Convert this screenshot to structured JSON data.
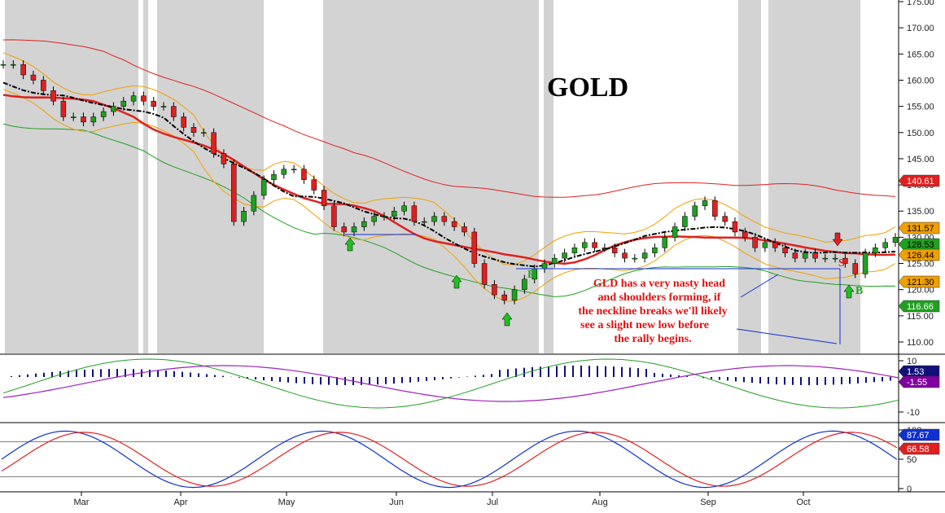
{
  "chart_data": [
    {
      "type": "candlestick",
      "title": "GOLD",
      "ylim": [
        107,
        176
      ],
      "yticks": [
        "175.00",
        "170.00",
        "165.00",
        "160.00",
        "155.00",
        "150.00",
        "145.00",
        "140.00",
        "135.00",
        "130.00",
        "125.00",
        "120.00",
        "115.00",
        "110.00"
      ],
      "ytick_values": [
        175,
        170,
        165,
        160,
        155,
        150,
        145,
        140,
        135,
        130,
        125,
        120,
        115,
        110
      ],
      "months": [
        "Mar",
        "Apr",
        "May",
        "Jun",
        "Jul",
        "Aug",
        "Sep",
        "Oct"
      ],
      "month_positions": [
        0.0,
        0.0,
        0.0,
        0.0,
        0.0,
        0.0,
        0.0,
        0.0
      ],
      "right_badges": [
        {
          "value": "140.61",
          "color": "#e02020",
          "text_color": "#ffffff"
        },
        {
          "value": "131.57",
          "color": "#f0a000",
          "text_color": "#000000"
        },
        {
          "value": "128.53",
          "color": "#20a020",
          "text_color": "#000000"
        },
        {
          "value": "126.44",
          "color": "#f0a000",
          "text_color": "#000000"
        },
        {
          "value": "121.30",
          "color": "#f0a000",
          "text_color": "#000000"
        },
        {
          "value": "116.66",
          "color": "#20a020",
          "text_color": "#ffffff"
        }
      ],
      "annotation": [
        "GLD has a very nasty head",
        "and shoulders forming, if",
        "the neckline breaks we'll likely",
        "see a slight new low before",
        "the rally begins."
      ],
      "marker_labels": [
        "B",
        "S",
        "B"
      ],
      "price_series": [
        163,
        163,
        161,
        160,
        158,
        156,
        153,
        153,
        152,
        153,
        154,
        155,
        156,
        157,
        156,
        155,
        155,
        153,
        151,
        150,
        150,
        146,
        144,
        133,
        135,
        138,
        141,
        142,
        143,
        143,
        141,
        139,
        136,
        132,
        131,
        132,
        133,
        134,
        134,
        135,
        136,
        133,
        133,
        134,
        133,
        132,
        131,
        125,
        121,
        119,
        118,
        120,
        122,
        124,
        125,
        126,
        127,
        128,
        129,
        128,
        128,
        127,
        126,
        126,
        127,
        128,
        130,
        132,
        134,
        136,
        137,
        134,
        133,
        131,
        130,
        128,
        129,
        128,
        127,
        126,
        127,
        126,
        126,
        126,
        125,
        123,
        127,
        128,
        129,
        130
      ]
    },
    {
      "type": "macd",
      "yticks": [
        "10",
        "-10"
      ],
      "badges": [
        {
          "value": "1.53",
          "color": "#10107a",
          "text_color": "#ffffff"
        },
        {
          "value": "-1.55",
          "color": "#8000a0",
          "text_color": "#ffffff"
        }
      ]
    },
    {
      "type": "stochastic",
      "yticks": [
        "100",
        "50",
        "0"
      ],
      "badges": [
        {
          "value": "87.67",
          "color": "#1030d0",
          "text_color": "#ffffff"
        },
        {
          "value": "66.58",
          "color": "#e02020",
          "text_color": "#ffffff"
        }
      ]
    }
  ]
}
